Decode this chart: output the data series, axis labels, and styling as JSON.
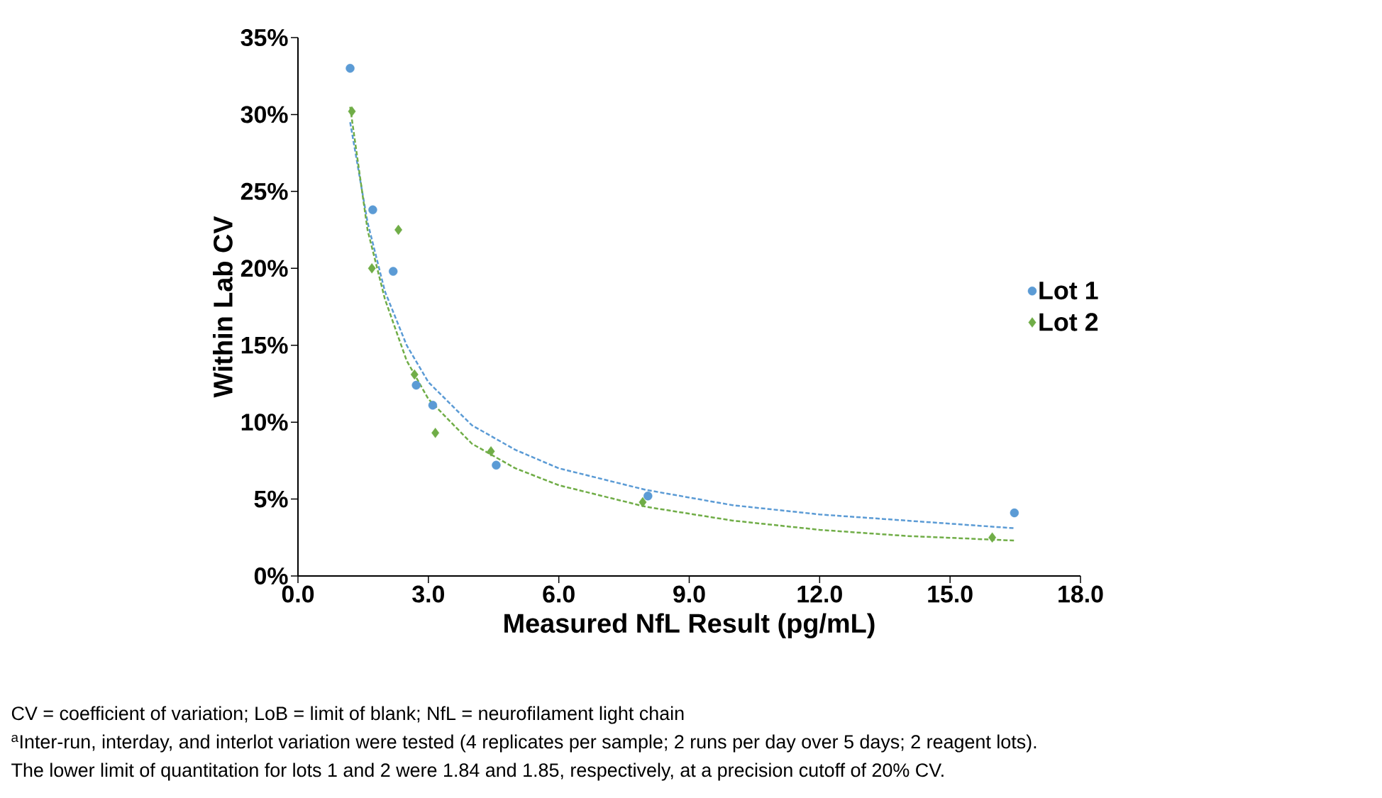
{
  "chart_data": {
    "type": "scatter",
    "xlabel": "Measured NfL Result (pg/mL)",
    "ylabel": "Within Lab CV",
    "xlim": [
      0,
      18
    ],
    "ylim": [
      0,
      35
    ],
    "xticks": [
      {
        "value": 0,
        "label": "0.0"
      },
      {
        "value": 3,
        "label": "3.0"
      },
      {
        "value": 6,
        "label": "6.0"
      },
      {
        "value": 9,
        "label": "9.0"
      },
      {
        "value": 12,
        "label": "12.0"
      },
      {
        "value": 15,
        "label": "15.0"
      },
      {
        "value": 18,
        "label": "18.0"
      }
    ],
    "yticks": [
      {
        "value": 0,
        "label": "0%"
      },
      {
        "value": 5,
        "label": "5%"
      },
      {
        "value": 10,
        "label": "10%"
      },
      {
        "value": 15,
        "label": "15%"
      },
      {
        "value": 20,
        "label": "20%"
      },
      {
        "value": 25,
        "label": "25%"
      },
      {
        "value": 30,
        "label": "30%"
      },
      {
        "value": 35,
        "label": "35%"
      }
    ],
    "legend": "right",
    "grid": false,
    "series": [
      {
        "name": "Lot 1",
        "color": "#5b9bd5",
        "marker": "circle",
        "x": [
          1.2,
          1.72,
          2.19,
          2.72,
          3.1,
          4.56,
          8.05,
          16.48
        ],
        "values": [
          33.0,
          23.8,
          19.8,
          12.4,
          11.1,
          7.2,
          5.2,
          4.1
        ]
      },
      {
        "name": "Lot 2",
        "color": "#70ad47",
        "marker": "diamond",
        "x": [
          1.24,
          1.7,
          2.31,
          2.68,
          3.16,
          4.44,
          7.93,
          15.97
        ],
        "values": [
          30.2,
          20.0,
          22.5,
          13.1,
          9.3,
          8.1,
          4.8,
          2.5
        ]
      },
      {
        "type": "line",
        "color": "#5b9bd5",
        "line_style": "dashed",
        "marker": "none",
        "x": [
          1.2,
          1.6,
          2.0,
          2.5,
          3.0,
          4.0,
          5.0,
          6.0,
          8.0,
          10,
          12,
          14,
          16.5
        ],
        "values": [
          29.5,
          23,
          18.5,
          15,
          12.6,
          9.8,
          8.2,
          7.0,
          5.6,
          4.6,
          4.0,
          3.6,
          3.1
        ]
      },
      {
        "type": "line",
        "color": "#70ad47",
        "line_style": "dashed",
        "marker": "none",
        "x": [
          1.2,
          1.6,
          2.0,
          2.5,
          3.0,
          4.0,
          5.0,
          6.0,
          8.0,
          10,
          12,
          14,
          16.5
        ],
        "values": [
          30.5,
          22.5,
          18,
          14,
          11.5,
          8.6,
          7.0,
          5.9,
          4.5,
          3.6,
          3.0,
          2.6,
          2.3
        ]
      }
    ],
    "annotations": [
      "CV = coefficient of variation; LoB = limit of blank; NfL = neurofilament light chain",
      "$^{a}$Inter-run, interday, and interlot variation were tested (4 replicates per sample; 2 runs per day over 5 days; 2 reagent lots).",
      "The lower limit of quantitation for lots 1 and 2 were 1.84 and 1.85, respectively, at a precision cutoff of 20% CV."
    ]
  }
}
